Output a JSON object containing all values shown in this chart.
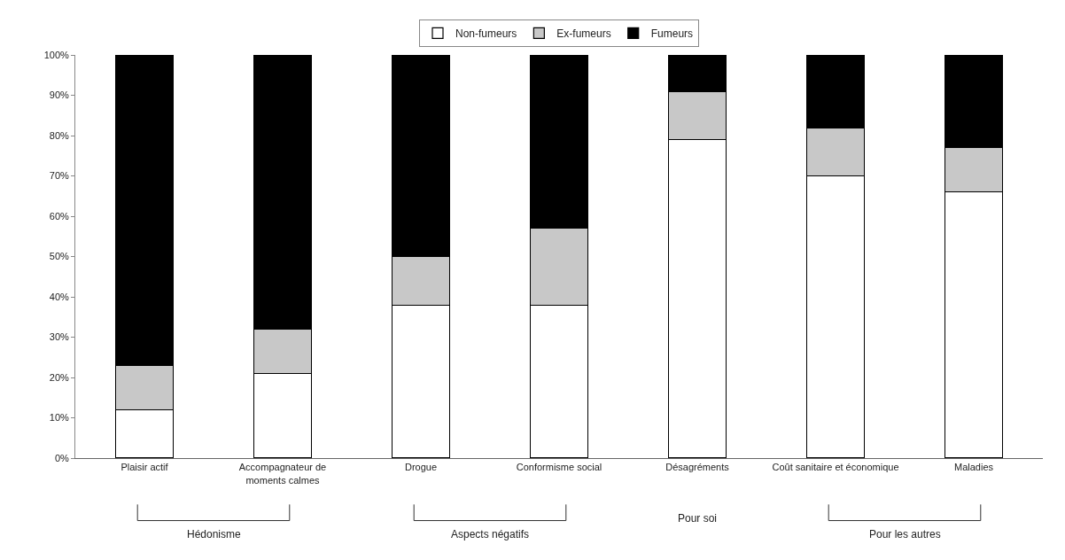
{
  "chart_data": {
    "type": "bar",
    "stacked": true,
    "categories": [
      "Plaisir actif",
      "Accompagnateur de moments calmes",
      "Drogue",
      "Conformisme social",
      "Désagréments",
      "Coût sanitaire et économique",
      "Maladies"
    ],
    "series": [
      {
        "name": "Non-fumeurs",
        "color": "#ffffff",
        "values": [
          12,
          21,
          38,
          38,
          79,
          70,
          66
        ]
      },
      {
        "name": "Ex-fumeurs",
        "color": "#c8c8c8",
        "values": [
          11,
          11,
          12,
          19,
          12,
          12,
          11
        ]
      },
      {
        "name": "Fumeurs",
        "color": "#000000",
        "values": [
          77,
          68,
          50,
          43,
          9,
          18,
          23
        ]
      }
    ],
    "ylim": [
      0,
      100
    ],
    "yticks": [
      {
        "value": 0,
        "label": "0%"
      },
      {
        "value": 10,
        "label": "10%"
      },
      {
        "value": 20,
        "label": "20%"
      },
      {
        "value": 30,
        "label": "30%"
      },
      {
        "value": 40,
        "label": "40%"
      },
      {
        "value": 50,
        "label": "50%"
      },
      {
        "value": 60,
        "label": "60%"
      },
      {
        "value": 70,
        "label": "70%"
      },
      {
        "value": 80,
        "label": "80%"
      },
      {
        "value": 90,
        "label": "90%"
      },
      {
        "value": 100,
        "label": "100%"
      }
    ],
    "grid": false,
    "legend": "top",
    "annotations": [
      "Hédonisme",
      "Aspects négatifs",
      "Pour soi",
      "Pour les autres"
    ]
  }
}
